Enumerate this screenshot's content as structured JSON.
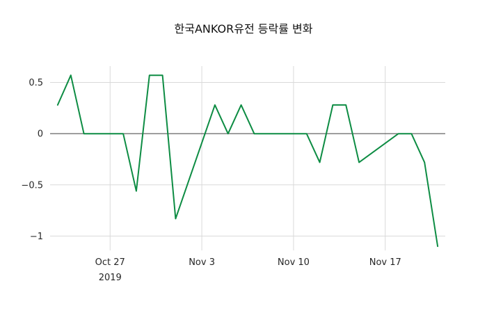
{
  "title": "한국ANKOR유전 등락률 변화",
  "colors": {
    "background": "#ffffff",
    "grid": "#d9d9d9",
    "zero_line": "#3c3c3c",
    "series_green": "#0d8c43",
    "text": "#262626"
  },
  "chart_data": {
    "type": "line",
    "title": "한국ANKOR유전 등락률 변화",
    "xlabel": "",
    "ylabel": "",
    "grid": true,
    "legend_position": "none",
    "ylim": [
      -1.14,
      0.66
    ],
    "series": [
      {
        "color": "#0d8c43",
        "x": [
          "2019-10-23",
          "2019-10-24",
          "2019-10-25",
          "2019-10-28",
          "2019-10-29",
          "2019-10-30",
          "2019-10-31",
          "2019-11-01",
          "2019-11-04",
          "2019-11-05",
          "2019-11-06",
          "2019-11-07",
          "2019-11-08",
          "2019-11-11",
          "2019-11-12",
          "2019-11-13",
          "2019-11-14",
          "2019-11-15",
          "2019-11-18",
          "2019-11-19",
          "2019-11-20",
          "2019-11-21"
        ],
        "values": [
          0.28,
          0.57,
          0.0,
          0.0,
          -0.56,
          0.57,
          0.57,
          -0.83,
          0.28,
          0.0,
          0.28,
          0.0,
          0.0,
          0.0,
          -0.28,
          0.28,
          0.28,
          -0.28,
          0.0,
          0.0,
          -0.28,
          -1.1
        ]
      }
    ],
    "x_ticks": [
      {
        "date": "2019-10-27",
        "label": "Oct 27",
        "sublabel": "2019"
      },
      {
        "date": "2019-11-03",
        "label": "Nov 3"
      },
      {
        "date": "2019-11-10",
        "label": "Nov 10"
      },
      {
        "date": "2019-11-17",
        "label": "Nov 17"
      }
    ],
    "y_ticks": [
      {
        "value": 0.5,
        "label": "0.5"
      },
      {
        "value": 0,
        "label": "0"
      },
      {
        "value": -0.5,
        "label": "−0.5"
      },
      {
        "value": -1,
        "label": "−1"
      }
    ]
  }
}
